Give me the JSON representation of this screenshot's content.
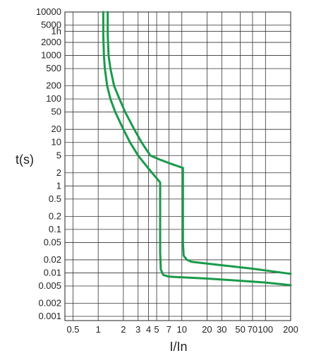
{
  "chart_data": {
    "type": "line",
    "title": "",
    "xlabel": "I/In",
    "ylabel": "t(s)",
    "x_scale": "log",
    "y_scale": "log",
    "grid": true,
    "legend": "none",
    "xlim": [
      0.4,
      200
    ],
    "ylim": [
      0.0008,
      10000
    ],
    "x_ticks": [
      {
        "value": 0.5,
        "label": "0.5"
      },
      {
        "value": 1,
        "label": "1"
      },
      {
        "value": 2,
        "label": "2"
      },
      {
        "value": 3,
        "label": "3"
      },
      {
        "value": 4,
        "label": "4"
      },
      {
        "value": 5,
        "label": "5"
      },
      {
        "value": 7,
        "label": "7"
      },
      {
        "value": 10,
        "label": "10"
      },
      {
        "value": 20,
        "label": "20"
      },
      {
        "value": 30,
        "label": "30"
      },
      {
        "value": 50,
        "label": "50"
      },
      {
        "value": 70,
        "label": "70"
      },
      {
        "value": 100,
        "label": "100"
      },
      {
        "value": 200,
        "label": "200"
      }
    ],
    "y_ticks": [
      {
        "value": 10000,
        "label": "10000"
      },
      {
        "value": 5000,
        "label": "5000"
      },
      {
        "value": 3600,
        "label": "1h"
      },
      {
        "value": 2000,
        "label": "2000"
      },
      {
        "value": 1000,
        "label": "1000"
      },
      {
        "value": 500,
        "label": "500"
      },
      {
        "value": 200,
        "label": "200"
      },
      {
        "value": 100,
        "label": "100"
      },
      {
        "value": 50,
        "label": "50"
      },
      {
        "value": 20,
        "label": "20"
      },
      {
        "value": 10,
        "label": "10"
      },
      {
        "value": 5,
        "label": "5"
      },
      {
        "value": 2,
        "label": "2"
      },
      {
        "value": 1,
        "label": "1"
      },
      {
        "value": 0.5,
        "label": "0.5"
      },
      {
        "value": 0.2,
        "label": "0.2"
      },
      {
        "value": 0.1,
        "label": "0.1"
      },
      {
        "value": 0.05,
        "label": "0.05"
      },
      {
        "value": 0.02,
        "label": "0.02"
      },
      {
        "value": 0.01,
        "label": "0.01"
      },
      {
        "value": 0.005,
        "label": "0.005"
      },
      {
        "value": 0.002,
        "label": "0.002"
      },
      {
        "value": 0.001,
        "label": "0.001"
      }
    ],
    "line_color": "#1a9a4a",
    "series": [
      {
        "points": [
          [
            1.15,
            10000
          ],
          [
            1.15,
            3000
          ],
          [
            1.17,
            1000
          ],
          [
            1.2,
            500
          ],
          [
            1.28,
            200
          ],
          [
            1.4,
            100
          ],
          [
            1.6,
            50
          ],
          [
            2.0,
            20
          ],
          [
            2.4,
            10
          ],
          [
            3.0,
            5
          ],
          [
            4.0,
            2.5
          ],
          [
            5.5,
            1.2
          ],
          [
            5.5,
            0.6
          ],
          [
            5.5,
            0.1
          ],
          [
            5.5,
            0.03
          ],
          [
            5.6,
            0.012
          ],
          [
            6.0,
            0.009
          ],
          [
            7.0,
            0.0082
          ],
          [
            20,
            0.0074
          ],
          [
            50,
            0.0066
          ],
          [
            100,
            0.006
          ],
          [
            200,
            0.0052
          ]
        ]
      },
      {
        "points": [
          [
            1.3,
            10000
          ],
          [
            1.3,
            3000
          ],
          [
            1.33,
            1000
          ],
          [
            1.4,
            500
          ],
          [
            1.55,
            200
          ],
          [
            1.8,
            100
          ],
          [
            2.1,
            50
          ],
          [
            2.7,
            20
          ],
          [
            3.3,
            10
          ],
          [
            4.2,
            5
          ],
          [
            5.5,
            4
          ],
          [
            7.5,
            3.2
          ],
          [
            10.3,
            2.6
          ],
          [
            10.3,
            1
          ],
          [
            10.3,
            0.2
          ],
          [
            10.3,
            0.05
          ],
          [
            10.5,
            0.025
          ],
          [
            11.5,
            0.02
          ],
          [
            13,
            0.018
          ],
          [
            30,
            0.015
          ],
          [
            70,
            0.0125
          ],
          [
            200,
            0.0095
          ]
        ]
      }
    ]
  }
}
